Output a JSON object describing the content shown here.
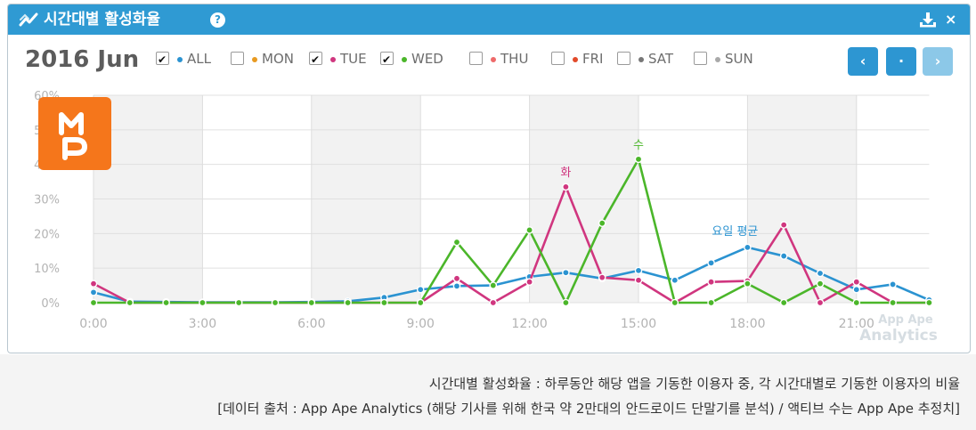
{
  "window": {
    "title": "시간대별 활성화율",
    "help_label": "?",
    "download_icon": "download-icon",
    "close_label": "×"
  },
  "toolbar": {
    "date": "2016 Jun",
    "nav": {
      "prev_label": "‹",
      "current_label": "·",
      "next_label": "›"
    }
  },
  "legend": [
    {
      "key": "all",
      "label": "ALL",
      "checked": true,
      "color": "#2b93d1"
    },
    {
      "key": "mon",
      "label": "MON",
      "checked": false,
      "color": "#e89a21"
    },
    {
      "key": "tue",
      "label": "TUE",
      "checked": true,
      "color": "#d0367f"
    },
    {
      "key": "wed",
      "label": "WED",
      "checked": true,
      "color": "#4bb62a"
    },
    {
      "key": "thu",
      "label": "THU",
      "checked": false,
      "color": "#ee6a6a"
    },
    {
      "key": "fri",
      "label": "FRI",
      "checked": false,
      "color": "#e24a2a"
    },
    {
      "key": "sat",
      "label": "SAT",
      "checked": false,
      "color": "#777777"
    },
    {
      "key": "sun",
      "label": "SUN",
      "checked": false,
      "color": "#a9a9a9"
    }
  ],
  "logo": {
    "text": "MP"
  },
  "watermark": {
    "line1": "App Ape",
    "line2": "Analytics"
  },
  "chart_data": {
    "type": "line",
    "x_hours": [
      0,
      1,
      2,
      3,
      4,
      5,
      6,
      7,
      8,
      9,
      10,
      11,
      12,
      13,
      14,
      15,
      16,
      17,
      18,
      19,
      20,
      21,
      22,
      23
    ],
    "x_ticks": [
      "0:00",
      "3:00",
      "6:00",
      "9:00",
      "12:00",
      "15:00",
      "18:00",
      "21:00"
    ],
    "y_ticks": [
      "0%",
      "10%",
      "20%",
      "30%",
      "40%",
      "50%",
      "60%"
    ],
    "ylim": [
      0,
      60
    ],
    "grid": true,
    "series": [
      {
        "key": "all",
        "color": "#2b93d1",
        "values": [
          3.0,
          0.3,
          0.2,
          0.1,
          0.1,
          0.1,
          0.2,
          0.4,
          1.5,
          3.8,
          4.8,
          5.0,
          7.5,
          8.7,
          7.0,
          9.3,
          6.5,
          11.5,
          16.0,
          13.5,
          8.5,
          3.8,
          5.3,
          0.8
        ]
      },
      {
        "key": "tue",
        "color": "#d0367f",
        "values": [
          5.5,
          0,
          0,
          0,
          0,
          0,
          0,
          0,
          0,
          0,
          7.0,
          0,
          6.0,
          33.5,
          7.3,
          6.5,
          0,
          6.0,
          6.3,
          22.5,
          0,
          6.0,
          0,
          0
        ]
      },
      {
        "key": "wed",
        "color": "#4bb62a",
        "values": [
          0,
          0,
          0,
          0,
          0,
          0,
          0,
          0,
          0,
          0,
          17.5,
          5.0,
          21.0,
          0,
          23.0,
          41.5,
          0,
          0,
          5.5,
          0,
          5.5,
          0,
          0,
          0
        ]
      }
    ],
    "annotations": [
      {
        "text": "화",
        "series": "tue",
        "hour": 13,
        "color": "#d0367f"
      },
      {
        "text": "수",
        "series": "wed",
        "hour": 15,
        "color": "#4bb62a"
      },
      {
        "text": "요일 평균",
        "series": "all",
        "hour": 18,
        "color": "#2b93d1"
      }
    ]
  },
  "footer": {
    "line1": "시간대별 활성화율 : 하루동안 해당 앱을 기동한 이용자 중, 각 시간대별로 기동한 이용자의 비율",
    "line2": "[데이터 출처 : App Ape Analytics (해당 기사를 위해 한국 약 2만대의 안드로이드 단말기를 분석) / 액티브 수는 App Ape 추정치]"
  }
}
